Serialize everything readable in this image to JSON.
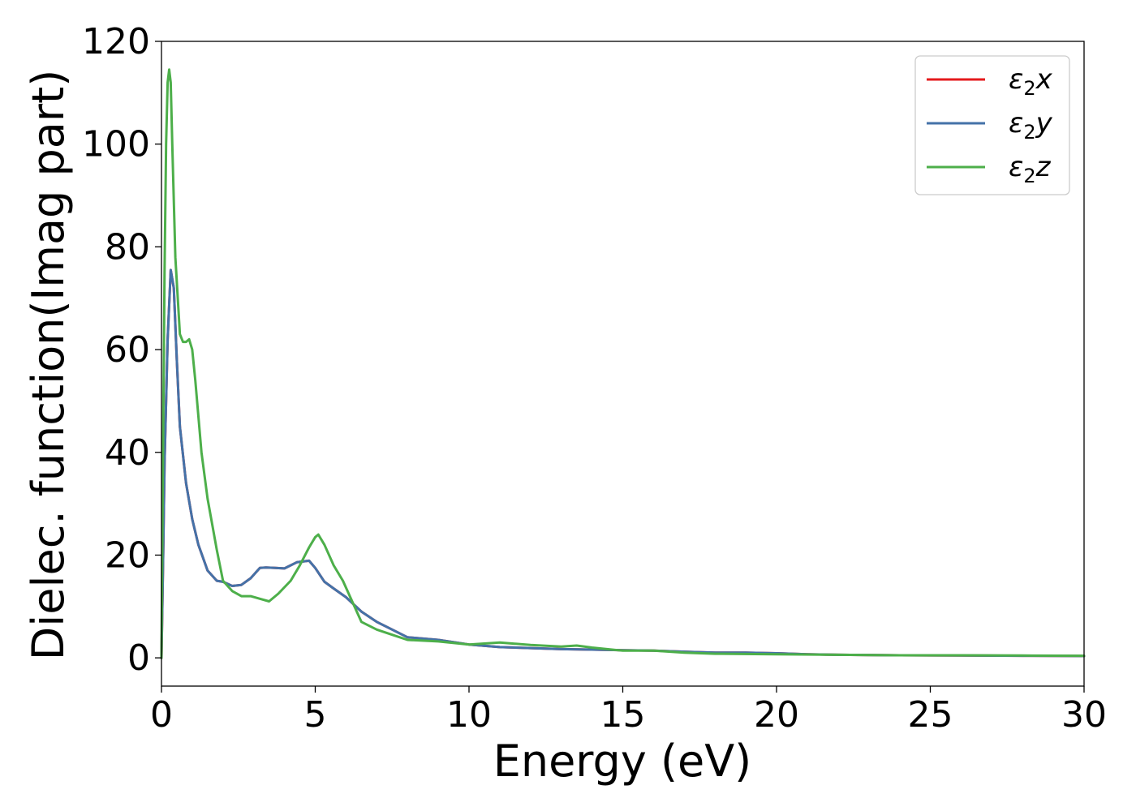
{
  "chart_data": {
    "type": "line",
    "xlabel": "Energy (eV)",
    "ylabel": "Dielec. function(Imag part)",
    "xlim": [
      0,
      30
    ],
    "ylim": [
      -5.5,
      120
    ],
    "xticks": [
      0,
      5,
      10,
      15,
      20,
      25,
      30
    ],
    "yticks": [
      0,
      20,
      40,
      60,
      80,
      100,
      120
    ],
    "grid": false,
    "legend_position": "top-right",
    "series": [
      {
        "name": "ε2x",
        "legend_base": "ε",
        "legend_sub": "2",
        "legend_axis": "x",
        "color": "#e41a1c",
        "x": [
          0,
          0.05,
          0.1,
          0.2,
          0.3,
          0.4,
          0.5,
          0.6,
          0.8,
          1.0,
          1.2,
          1.5,
          1.8,
          2.0,
          2.3,
          2.6,
          2.9,
          3.2,
          3.4,
          3.7,
          4.0,
          4.4,
          4.8,
          5.0,
          5.3,
          5.6,
          6.0,
          6.5,
          7.0,
          7.5,
          8.0,
          9.0,
          10.0,
          11.0,
          12.0,
          13.0,
          14.0,
          15.0,
          16.0,
          17.0,
          18.0,
          19.0,
          20.0,
          21.0,
          22.0,
          24.0,
          26.0,
          28.0,
          30.0
        ],
        "values": [
          0,
          18,
          38,
          62,
          75.5,
          72,
          58,
          45,
          34,
          27,
          22,
          17,
          15,
          14.8,
          14,
          14.2,
          15.5,
          17.5,
          17.6,
          17.5,
          17.4,
          18.6,
          18.9,
          17.5,
          14.8,
          13.5,
          11.8,
          9,
          7,
          5.5,
          4,
          3.5,
          2.6,
          2.1,
          1.9,
          1.7,
          1.6,
          1.5,
          1.4,
          1.2,
          1.0,
          1.0,
          0.9,
          0.7,
          0.6,
          0.5,
          0.45,
          0.4,
          0.35
        ]
      },
      {
        "name": "ε2y",
        "legend_base": "ε",
        "legend_sub": "2",
        "legend_axis": "y",
        "color": "#4472a8",
        "x": [
          0,
          0.05,
          0.1,
          0.2,
          0.3,
          0.4,
          0.5,
          0.6,
          0.8,
          1.0,
          1.2,
          1.5,
          1.8,
          2.0,
          2.3,
          2.6,
          2.9,
          3.2,
          3.4,
          3.7,
          4.0,
          4.4,
          4.8,
          5.0,
          5.3,
          5.6,
          6.0,
          6.5,
          7.0,
          7.5,
          8.0,
          9.0,
          10.0,
          11.0,
          12.0,
          13.0,
          14.0,
          15.0,
          16.0,
          17.0,
          18.0,
          19.0,
          20.0,
          21.0,
          22.0,
          24.0,
          26.0,
          28.0,
          30.0
        ],
        "values": [
          0,
          18,
          38,
          62,
          75.5,
          72,
          58,
          45,
          34,
          27,
          22,
          17,
          15,
          14.8,
          14,
          14.2,
          15.5,
          17.5,
          17.6,
          17.5,
          17.4,
          18.6,
          18.9,
          17.5,
          14.8,
          13.5,
          11.8,
          9,
          7,
          5.5,
          4,
          3.5,
          2.6,
          2.1,
          1.9,
          1.7,
          1.6,
          1.5,
          1.4,
          1.2,
          1.0,
          1.0,
          0.9,
          0.7,
          0.6,
          0.5,
          0.45,
          0.4,
          0.35
        ]
      },
      {
        "name": "ε2z",
        "legend_base": "ε",
        "legend_sub": "2",
        "legend_axis": "z",
        "color": "#4daf4a",
        "x": [
          0,
          0.05,
          0.1,
          0.15,
          0.2,
          0.25,
          0.3,
          0.35,
          0.45,
          0.6,
          0.7,
          0.8,
          0.9,
          1.0,
          1.1,
          1.3,
          1.5,
          1.8,
          2.0,
          2.3,
          2.6,
          2.9,
          3.2,
          3.5,
          3.8,
          4.2,
          4.5,
          4.8,
          5.0,
          5.1,
          5.3,
          5.6,
          5.9,
          6.2,
          6.5,
          7.0,
          7.5,
          8.0,
          9.0,
          10.0,
          11.0,
          12.0,
          13.0,
          13.5,
          14.0,
          15.0,
          16.0,
          17.0,
          18.0,
          20.0,
          22.0,
          24.0,
          26.0,
          28.0,
          30.0
        ],
        "values": [
          0,
          40,
          75,
          100,
          112,
          114.5,
          112,
          100,
          78,
          63,
          61.5,
          61.5,
          62,
          60,
          54,
          40,
          31,
          21,
          15,
          13,
          12,
          12,
          11.5,
          11,
          12.5,
          15,
          18,
          21.5,
          23.5,
          24,
          22,
          18,
          15,
          11,
          7,
          5.5,
          4.5,
          3.5,
          3.2,
          2.6,
          3.0,
          2.5,
          2.2,
          2.4,
          2.0,
          1.4,
          1.4,
          1.0,
          0.8,
          0.7,
          0.6,
          0.5,
          0.5,
          0.45,
          0.4
        ]
      }
    ]
  }
}
